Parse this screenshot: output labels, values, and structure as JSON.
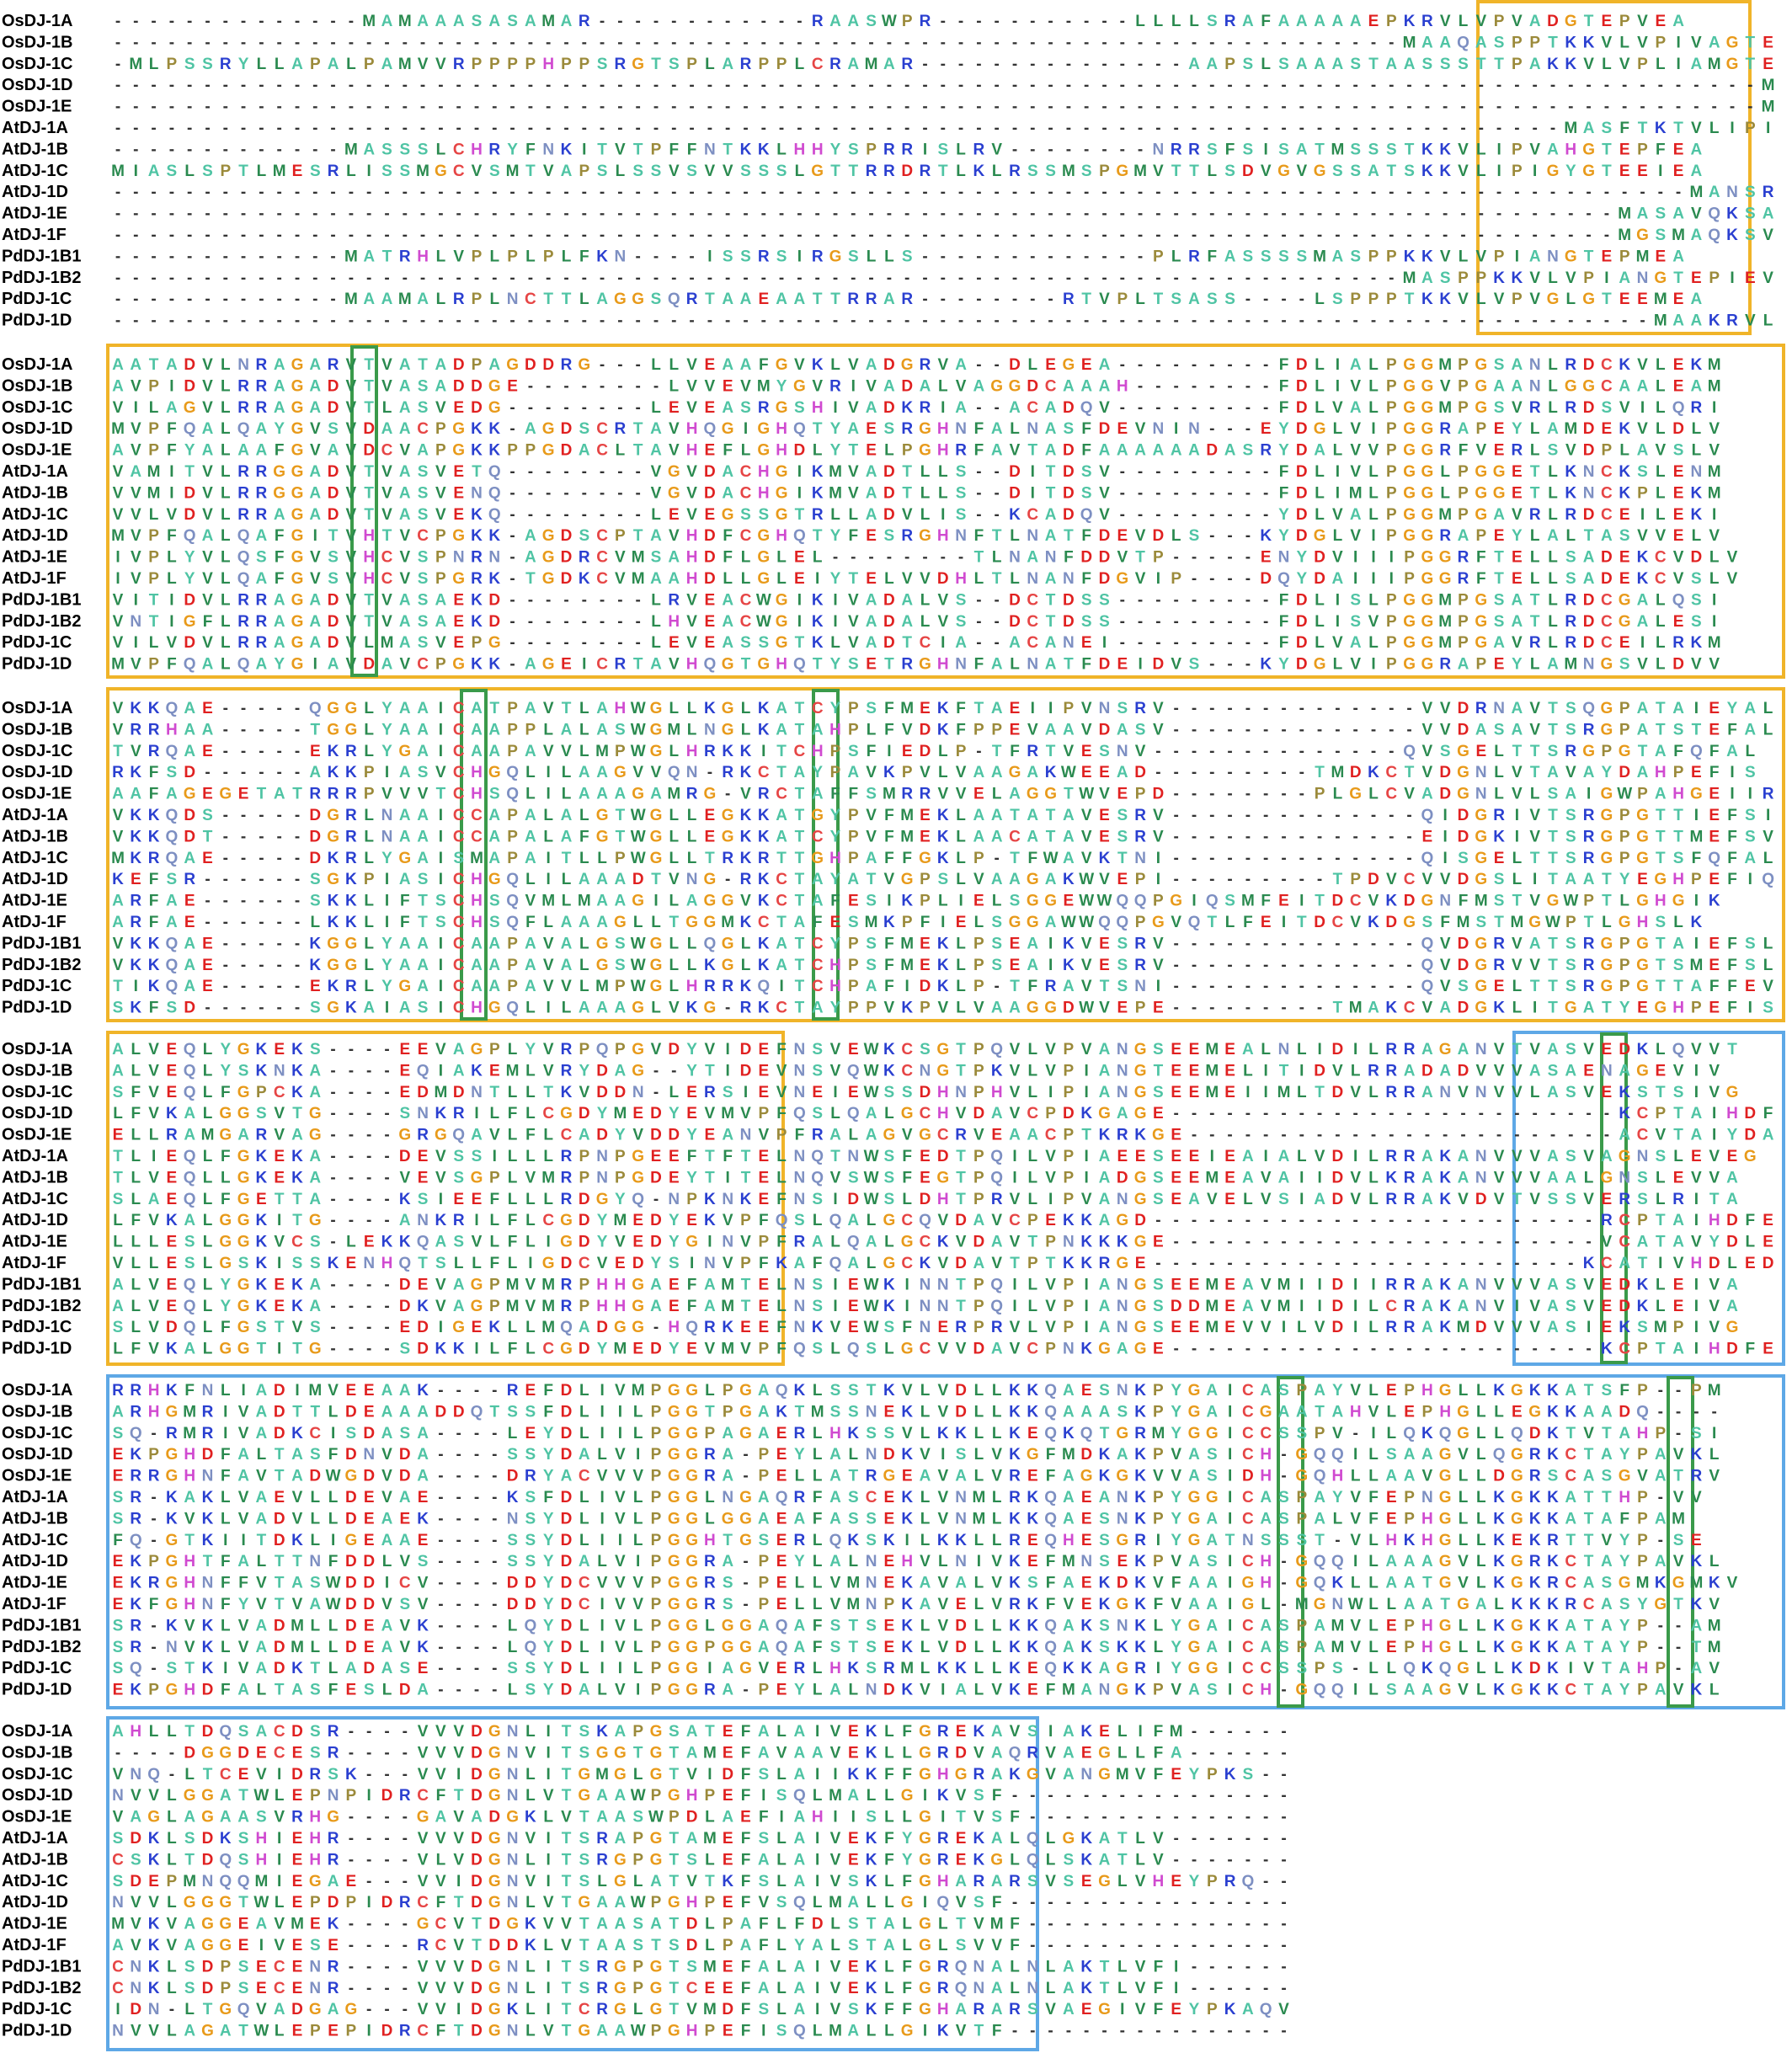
{
  "alignment": {
    "row_names": [
      "OsDJ-1A",
      "OsDJ-1B",
      "OsDJ-1C",
      "OsDJ-1D",
      "OsDJ-1E",
      "AtDJ-1A",
      "AtDJ-1B",
      "AtDJ-1C",
      "AtDJ-1D",
      "AtDJ-1E",
      "AtDJ-1F",
      "PdDJ-1B1",
      "PdDJ-1B2",
      "PdDJ-1C",
      "PdDJ-1D"
    ],
    "blocks": [
      [
        "--------------MAMAAASASAMAR------------RAASWPR-----------LLLLSRAFAAAAAEPKRVLVPVADGTEPVEA",
        "------------------------------------------------------------------------MAAQASPPTKKVLVPIVAGTEPVEA",
        "-MLPSSRYLLAPALPAMVVRPPPPHPPSRGTSPLARPPLCRAMAR---------------AAPSLSAAASTAASSSTTPAKKVLVPLIAMGTEEMEA",
        "--------------------------------------------------------------------------------------------MAKKVLLLCGDYMEDYEA",
        "--------------------------------------------------------------------------------------------MAPKKVLMLCGDYMEDYEA",
        "---------------------------------------------------------------------------------MASFTKTVLIPIAHGTEPLEA",
        "-------------MASSSLCHRYFNKITVTPFFNTKKLHHYSPRRISLRV--------NRRSFSISATMSSSTKKVLIPVAHGTEPFEA",
        "MIASLSPTLMESRLISSMGCVSMTVAPSLSSVSVVSSSLGTTRRDRTLKLRSSMSPGMVTTLSDVGVGSSATSKKVLIPIGYGTEEIEA",
        "----------------------------------------------------------------------------------------MANSRTVLILCGDYMEDYEV",
        "------------------------------------------------------------------------------------MASAVQKSALLLCGDYMEAYET",
        "------------------------------------------------------------------------------------MGSMAQKSVLMLCGEFMEAYET",
        "-------------MATRHLVPLPLPLFKN----ISSRSIRGSLLS-------------PLRFASSSSMASPPKKVLVPIANGTEPMEA",
        "------------------------------------------------------------------------MASPPKKVLVPIANGTEPIEV",
        "-------------MAAMALRPLNCTTLAGGSQRTAAEAATTRRAR--------RTVPLTSASS----LSPPPTKKVLVPVGLGTEEMEA",
        "--------------------------------------------------------------------------------------MAAKRVLLFCGDYVEDYEV"
      ],
      [
        "AATADVLNRAGARVTVATADPAGDDRG---LLVEAAFGVKLVADGRVA--DLEGEA---------FDLIALPGGMPGSANLRDCKVLEKM",
        "AVPIDVLRRAGADVTVASADDGE--------LVVEVMYGVRIVADALVAGGDCAAAH--------FDLIVLPGGVPGAANLGGCAALEAM",
        "VILAGVLRRAGADVTLASVEDG--------LEVEASRGSHIVADKRIA--ACADQV---------FDLVALPGGMPGSVRLRDSVILQRI",
        "MVPFQALQAYGVSVDAACPGKK-AGDSCRTAVHQGIGHQTYAESRGHNFALNASFDEVNIN---EYDGLVIPGGRAPEYLAMDEKVLDLV",
        "AVPFYALAAFGVAVDCVAPGKKPPGDACLTAVHEFLGHDLYTELPGHRFAVTADFAAAAAADASRYDALVVPGGRFVERLSVDPLAVSLV",
        "VAMITVLRRGGADVTVASVETQ--------VGVDACHGIKMVADTLLS--DITDSV---------FDLIVLPGGLPGGETLKNCKSLENM",
        "VVMIDVLRRGGADVTVASVENQ--------VGVDACHGIKMVADTLLS--DITDSV---------FDLIMLPGGLPGGETLKNCKPLEKM",
        "VVLVDVLRRAGADVTVASVEKQ--------LEVEGSSGTRLLADVLIS--KCADQV---------YDLVALPGGMPGAVRLRDCEILEKI",
        "MVPFQALQAFGITVHTVCPGKK-AGDSCPTAVHDFCGHQTYFESRGHNFTLNATFDEVDLS---KYDGLVIPGGRAPEYLALTASVVELV",
        "IVPLYVLQSFGVSVHCVSPNRN-AGDRCVMSAHDFLGLEL--------TLNANFDDVTP-----ENYDVIIIPGGRFTELLSADEKCVDLV",
        "IVPLYVLQAFGVSVHCVSPGRK-TGDKCVMAAHDLLGLEIYTELVVDHLTLNANFDGVIP----DQYDAIIIPGGRFTELLSADEKCVSLV",
        "VITIDVLRRAGADVTVASAEKD--------LRVEACWGIKIVADALVS--DCTDSS---------FDLISLPGGMPGSATLRDCGALQSI",
        "VNTIGFLRRAGADVTVASAEKD--------LHVEACWGIKIVADALVS--DCTDSS---------FDLISVPGGMPGSATLRDCGALESI",
        "VILVDVLRRAGADVLMASVEPG--------LEVEASSGTKLVADTCIA--ACANEI---------FDLVALPGGMPGAVRLRDCEILRKM",
        "MVPFQALQAYGIAVDAVCPGKK-AGEICRTAVHQGTGHQTYSETRGHNFALNATFDEIDVS---KYDGLVIPGGRAPEYLAMNGSVLDVV"
      ],
      [
        "VKKQAE-----QGGLYAAICATPAVTLAHWGLLKGLKATCYPSFMEKFTAEIIPVNSRV--------------VVDRNAVTSQGPATAIEYAL",
        "VRRHAA-----TGGLYAAICAAPPLALASWGMLNGLKATAHPLFVDKFPPEVAAVDASV--------------VVDASAVTSRGPATSTEFAL",
        "TVRQAE-----EKRLYGAICAAPAVVLMPWGLHRKKITCHPSFIEDLP-TFRTVESNV--------------QVSGELTTSRGPGTAFQFAL",
        "RKFSD------AKKPIASVCHGQLILAAGVVQN-RKCTAYPAVKPVLVAAGAKWEEAD---------TMDKCTVDGNLVTAVAYDAHPEFIS",
        "AAFAGEGETATRRRPVVVTCHSQLILAAAGAMRG-VRCTAFFSMRRVVELAGGTWVEPD--------PLGLCVADGNLVLSAIGWPAHGEIIR",
        "VKKQDS-----DGRLNAAICCAPALALGTWGLLEGKKATGYPVFMEKLAATATAVESRV--------------QIDGRIVTSRGPGTTIEFSI",
        "VKKQDT-----DGRLNAAICCAPALAFGTWGLLEGKKATCYPVFMEKLAACATAVESRV--------------EIDGKIVTSRGPGTTMEFSV",
        "MKRQAE-----DKRLYGAISMAPAITLLPWGLLTRKRTTGHPAFFGKLP-TFWAVKTNI--------------QISGELTTSRGPGTSFQFAL",
        "KEFSR------SGKPIASICHGQLILAAADTVNG-RKCTAYATVGPSLVAAGAKWVEPI---------TPDVCVVDGSLITAATYEGHPEFIQ",
        "ARFAE------SKKLIFTSCHSQVMLMAAGILAGGVKCTAFESIKPLIELSGGEWWQQPGIQSMFEITDCVKDGNFMSTVGWPTLGHGIK",
        "ARFAE------LKKLIFTSCHSQFLAAAGLLTGGMKCTAFESMKPFIELSGGAWWQQPGVQTLFEITDCVKDGSFMSTMGWPTLGHSLK",
        "VKKQAE-----KGGLYAAICAAPAVALGSWGLLQGLKATCYPSFMEKLPSEAIKVESRV--------------QVDGRVATSRGPGTAIEFSL",
        "VKKQAE-----KGGLYAAICAAPAVALGSWGLLKGLKATCHPSFMEKLPSEAIKVESRV--------------QVDGRVVTSRGPGTSMEFSL",
        "TIKQAE-----EKRLYGAICAAPAVVLMPWGLHRRKQITCHPAFIDKLP-TFRAVTSNI--------------QVSGELTTSRGPGTTAFFEVQ",
        "SKFSD------SGKAIASICHGQLILAAAGLVKG-RKCTAYPPVKPVLVAAGGDWVEPE---------TMAKCVADGKLITGATYEGHPEFIS"
      ],
      [
        "ALVEQLYGKEKS----EEVAGPLYVRPQPGVDYVIDEFNSVEWKCSGTPQVLVPVANGSEEMEALNLIDILRRAGANVTVASVEDKLQVVT",
        "ALVEQLYSKNKA----EQIAKEMLVRYDAG--YTIDEVNSVQWKCNGTPKVLVPIANGTEEMELITIDVLRRADADVVVASAENAGEVIV",
        "SFVEQLFGPCKA----EDMDNTLLTKVDDN-LERSIEVNEIEWSSDHNPHVLIPIANGSEEMEIIMLTDVLRRANVNVVLASVEKSTSIVG",
        "LFVKALGGSVTG----SNKRILFLCGDYMEDYEVMVPFQSLQALGCHVDAVCPDKGAGE-------------------------KCPTAIHDFEG-DQTYS",
        "ELLRAMGARVAG----GRGQAVLFLCADYVDDYEANVPFRALAGVGCRVEAACPTKRKGE------------------------ACVTAIYDATP-AASSD",
        "TLIEQLFGKEKA----DEVSSILLLRPNPGEEFTFTELNQTNWSFEDTPQILVPIAEESEEIEAIALVDILRRAKANVVVASVAGNSLEVEG",
        "TLVEQLLGKEKA----VEVSGPLVMRPNPGDEYTITELNQVSWSFEGTPQILVPIADGSEEMEAVAIIDVLKRAKANVVVAALGNSLEVVA",
        "SLAEQLFGETTA----KSIEEFLLLRDGYQ-NPKNKEFNSIDWSLDHTPRVLIPVANGSEAVELVSIADVLRRAKVDVTVSSVERSLRITA",
        "LFVKALGGKITG----ANKRILFLCGDYMEDYEKVPFQSLQALGCQVDAVCPEKKAGD-------------------------RCPTAIHDFEG-DQTYS",
        "LLLESLGGKVCS-LEKKQASVLFLIGDYVEDYGINVPFRALQALGCKVDAVTPNKKKGE------------------------VCATAVYDLEDGRQIPA",
        "VLLESLGSKISSKENHQTSLLFLIGDCVEDYSINVPFKAFQALGCKVDAVTPTKKRGE------------------------KCATIVHDLEDGRQLPT",
        "ALVEQLYGKEKA----DEVAGPMVMRPHHGAEFAMTELNSIEWKINNTPQILVPIANGSEEMEAVMIIDIIRRAKANVVVASVEDKLEIVA",
        "ALVEQLYGKEKA----DKVAGPMVMRPHHGAEFAMTELNSIEWKINNTPQILVPIANGSDDMEAVMIIDILCRAKANVIVASVEDKLEIVA",
        "SLVDQLFGSTVS----EDIGEKLLMQADGG-HQRKEEFNKVEWSFNERPRVLVPIANGSEEMEVVILVDILRRAKMDVVVASIEKSMPIVG",
        "LFVKALGGTITG----SDKKILFLCGDYMEDYEVMVPFQSLQSLGCVVDAVCPNKGAGE------------------------KCPTAIHDFEG-DQTYS"
      ],
      [
        "RRHKFNLIADIMVEEAAK----REFDLIVMPGGLPGAQKLSSTKVLVDLLKKQAESNKPYGAICASPAYVLEPHGLLKGKKATSFP--PM",
        "ARHGMRIVADTTLDEAAADDQTSSFDLIILPGGTPGAKTMSSNEKLVDLLKKQAAASKPYGAICGAATAHVLEPHGLLEGKKAADQ----",
        "SQ-RMRIVADKCISDASA----LEYDLIILPGGPAGAERLHKSSVLKKLLKEQKQTGRMYGGICCSSPV-ILQKQGLLQDKTVTAHP-SI",
        "EKPGHDFALTASFDNVDA----SSYDALVIPGGRA-PEYLALNDKVISLVKGFMDKAKPVASICH-GQQILSAAGVLQGRKCTAYPAVKL",
        "ERRGHNFAVTADWGDVDA----DRYACVVVPGGRA-PELLATRGEAVALVREFAGKGKVVASIDH-GQHLLAAVGLLDGRSCASGVATRV",
        "SR-KAKLVAEVLLDEVAE----KSFDLIVLPGGLNGAQRFASCEKLVNMLRKQAEANKPYGGICASPAYVFEPNGLLKGKKATTHP-VV",
        "SR-KVKLVADVLLDEAEK----NSYDLIVLPGGLGGAEAFASSEKLVNMLKKQAESNKPYGAICASPALVFEPHGLLKGKKATAFPAM",
        "FQ-GTKIITDKLIGEAAE----SSYDLIILPGGHTGSERLQKSKILKKLLREQHESGRIYGATNSSST-VLHKHGLLKEKRTTVYP-SE",
        "EKPGHTFALTTNFDDLVS----SSYDALVIPGGRA-PEYLALNEHVLNIVKEFMNSEKPVASICH-GQQILAAAGVLKGRKCTAYPAVKL",
        "EKRGHNFFVTASWDDICV----DDYDCVVVPGGRS-PELLVMNEKAVALVKSFAEKDKVFAAIGH-GQKLLAATGVLKGKRCASGMKGMKV",
        "EKFGHNFYVTVAWDDVSV----DDYDCIVVPGGRS-PELLVMNPKAVELVRKFVEKGKFVAAIGL-MGNWLLAATGALKKKRCASYGTKV",
        "SR-KVKLVADMLLDEAVK----LQYDLIVLPGGLGGAQAFSTSEKLVDLLKKQAKSNKLYGAICASPAMVLEPHGLLKGKKATAYP--AM",
        "SR-NVKLVADMLLDEAVK----LQYDLIVLPGGPGGAQAFSTSEKLVDLLKKQAKSKKLYGAICASPAMVLEPHGLLKGKKATAYP--TM",
        "SQ-STKIVADKTLADASE----SSYDLIILPGGIAGVERLHKSRMLKKLLKEQKKAGRIYGGICCSSPS-LLQKQGLLKDKIVTAHP-AV",
        "EKPGHDFALTASFESLDA----LSYDALVIPGGRA-PEYLALNDKVIALVKEFMANGKPVASICH-GQQILSAAGVLKGKKCTAYPAVKL"
      ],
      [
        "AHLLTDQSACDSR----VVVDGNLITSKAPGSATEFALAIVEKLFGREKAVSIAKELIFM------",
        "----DGGDECESR----VVVDGNVITSGGTGTAMEFAVAAVEKLLGRDVAQRVAEGLLFA------",
        "VNQ-LTCEVIDRSK---VVIDGNLITGMGLGTVIDFSLAIIKKFFGHGRAKGVANGMVFEYPKS--",
        "NVVLGGATWLEPNPIDRCFTDGNLVTGAAWPGHPEFISQLMALLGIKVSF----------------",
        "VAGLAGAASVRHG----GAVADGKLVTAASWPDLAEFIAHIISLLGITVSF---------------",
        "SDKLSDKSHIEHR----VVVDGNVITSRAPGTAMEFSLAIVEKFYGREKALQLGKATLV-------",
        "CSKLTDQSHIEHR----VLVDGNLITSRGPGTSLEFALAIVEKFYGREKGLQLSKATLV-------",
        "SDEPMNQQMIEGAE---VVIDGNVITSLGLATVTKFSLAIVSKLFGHARARSVSEGLVHEYPRQ--",
        "NVVLGGGTWLEPDPIDRCFTDGNLVTGAAWPGHPEFVSQLMALLGIQVSF----------------",
        "MVKVAGGEAVMEK----GCVTDGKVVTAASATDLPAFLFDLSTALGLTVMF---------------",
        "AVKVAGGEIVESE----RCVTDDKLVTAASTSDLPAFLYALSTALGLSVVF---------------",
        "CNKLSDPSECENR----VVVDGNLITSRGPGTSMEFALAIVEKLFGRQNALNLAKTLVFI------",
        "CNKLSDPSECENR----VVVDGNLITSRGPGTCEEFALAIVEKLFGRQNALNLAKTLVFI------",
        "IDN-LTGQVADGAG---VVIDGKLITCRGLGTVMDFSLAIVSKFFGHARARSVAEGIVFEYPKAQV",
        "NVVLAGATWLEPEPIDRCFTDGNLVTGAAWPGHPEFISQLMALLGIKVTF----------------"
      ]
    ],
    "colors": {
      "A": "#4fc4a4",
      "G": "#e89a1a",
      "V": "#2a8a4f",
      "L": "#2a8a4f",
      "I": "#2a8a4f",
      "M": "#2a8a4f",
      "F": "#2a8a4f",
      "W": "#2a8a4f",
      "P": "#9b8a3a",
      "C": "#e64545",
      "S": "#4fc4a4",
      "T": "#4fc4a4",
      "N": "#7d8fc2",
      "Q": "#7d8fc2",
      "Y": "#4fc4a4",
      "D": "#e02020",
      "E": "#e02020",
      "K": "#2a3fd0",
      "R": "#2a3fd0",
      "H": "#d04ad0",
      "-": "#333333"
    },
    "box_colors": {
      "orange": "#f0b429",
      "blue": "#5ea8e6",
      "green": "#3a9a4a"
    }
  }
}
